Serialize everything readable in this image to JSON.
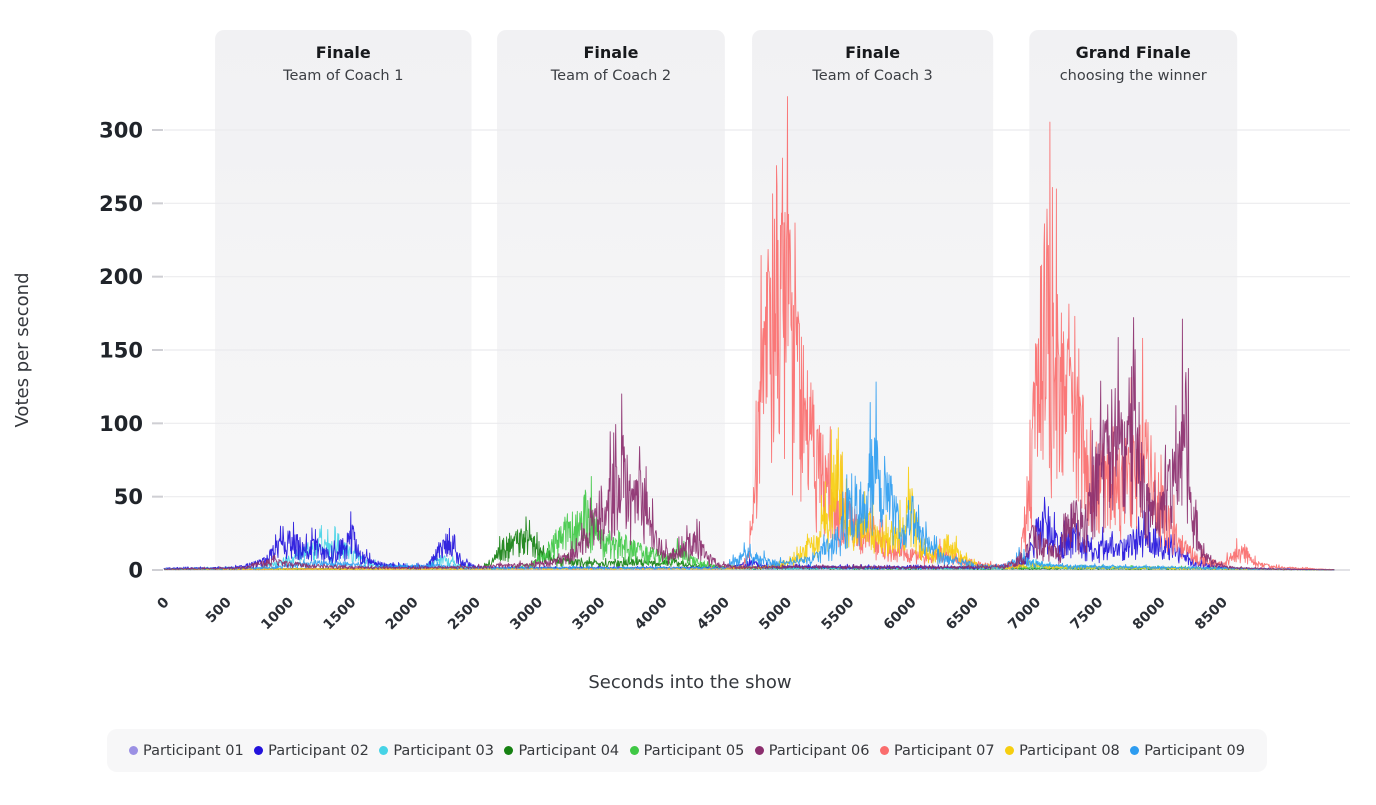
{
  "page": {
    "background": "#ffffff"
  },
  "chart_data": {
    "type": "line",
    "title": "",
    "xlabel": "Seconds into the show",
    "ylabel": "Votes per second",
    "x_ticks": [
      0,
      500,
      1000,
      1500,
      2000,
      2500,
      3000,
      3500,
      4000,
      4500,
      5000,
      5500,
      6000,
      6500,
      7000,
      7500,
      8000,
      8500
    ],
    "y_ticks": [
      0,
      50,
      100,
      150,
      200,
      250,
      300
    ],
    "xlim": [
      0,
      9400
    ],
    "ylim": [
      0,
      320
    ],
    "grid": "horizontal",
    "legend_position": "bottom",
    "series_encoding": "envelope control points [seconds_into_show, votes_per_second]; rendered as dense spiky per-second traces",
    "bands": [
      {
        "title": "Finale",
        "subtitle": "Team of Coach 1",
        "start": 410,
        "end": 2470
      },
      {
        "title": "Finale",
        "subtitle": "Team of Coach 2",
        "start": 2675,
        "end": 4505
      },
      {
        "title": "Finale",
        "subtitle": "Team of Coach 3",
        "start": 4723,
        "end": 6660
      },
      {
        "title": "Grand Finale",
        "subtitle": "choosing the winner",
        "start": 6950,
        "end": 8620
      }
    ],
    "draw_order": [
      0,
      3,
      4,
      2,
      1,
      6,
      7,
      8,
      5
    ],
    "series": [
      {
        "name": "Participant 01",
        "color": "#9b90e4",
        "envelope": [
          [
            0,
            1.2
          ],
          [
            8600,
            1.2
          ],
          [
            8800,
            0.6
          ],
          [
            9400,
            0.2
          ]
        ]
      },
      {
        "name": "Participant 02",
        "color": "#2312dc",
        "envelope": [
          [
            0,
            1.5
          ],
          [
            550,
            2
          ],
          [
            700,
            5
          ],
          [
            820,
            10
          ],
          [
            900,
            20
          ],
          [
            980,
            26
          ],
          [
            1060,
            29
          ],
          [
            1140,
            18
          ],
          [
            1220,
            23
          ],
          [
            1300,
            15
          ],
          [
            1380,
            18
          ],
          [
            1450,
            24
          ],
          [
            1510,
            33
          ],
          [
            1570,
            15
          ],
          [
            1660,
            8
          ],
          [
            1780,
            5
          ],
          [
            1950,
            3
          ],
          [
            2120,
            4
          ],
          [
            2200,
            18
          ],
          [
            2260,
            27
          ],
          [
            2330,
            18
          ],
          [
            2400,
            8
          ],
          [
            2500,
            3
          ],
          [
            2700,
            2
          ],
          [
            4550,
            2
          ],
          [
            4700,
            7
          ],
          [
            4850,
            4
          ],
          [
            5200,
            3
          ],
          [
            6500,
            2.5
          ],
          [
            6850,
            4
          ],
          [
            6950,
            18
          ],
          [
            7030,
            45
          ],
          [
            7120,
            32
          ],
          [
            7220,
            26
          ],
          [
            7320,
            33
          ],
          [
            7400,
            25
          ],
          [
            7500,
            20
          ],
          [
            7600,
            24
          ],
          [
            7700,
            20
          ],
          [
            7800,
            30
          ],
          [
            7900,
            36
          ],
          [
            8000,
            28
          ],
          [
            8100,
            20
          ],
          [
            8200,
            12
          ],
          [
            8300,
            6
          ],
          [
            8450,
            3
          ],
          [
            8600,
            1.5
          ],
          [
            9000,
            0.8
          ],
          [
            9400,
            0.3
          ]
        ]
      },
      {
        "name": "Participant 03",
        "color": "#46d3e6",
        "envelope": [
          [
            0,
            1.3
          ],
          [
            750,
            2
          ],
          [
            900,
            6
          ],
          [
            1000,
            10
          ],
          [
            1100,
            16
          ],
          [
            1180,
            20
          ],
          [
            1260,
            24
          ],
          [
            1340,
            19
          ],
          [
            1400,
            26
          ],
          [
            1470,
            21
          ],
          [
            1560,
            12
          ],
          [
            1660,
            6
          ],
          [
            1800,
            3
          ],
          [
            2100,
            2.5
          ],
          [
            2230,
            11
          ],
          [
            2320,
            7
          ],
          [
            2430,
            3
          ],
          [
            2600,
            1.5
          ],
          [
            6800,
            1.5
          ],
          [
            6930,
            7
          ],
          [
            7050,
            5
          ],
          [
            7250,
            2.5
          ],
          [
            8600,
            1.2
          ],
          [
            9000,
            0.6
          ],
          [
            9400,
            0.2
          ]
        ]
      },
      {
        "name": "Participant 04",
        "color": "#168112",
        "envelope": [
          [
            0,
            0.8
          ],
          [
            2550,
            1.5
          ],
          [
            2650,
            10
          ],
          [
            2720,
            22
          ],
          [
            2800,
            28
          ],
          [
            2880,
            31
          ],
          [
            2960,
            26
          ],
          [
            3040,
            18
          ],
          [
            3140,
            10
          ],
          [
            3260,
            8
          ],
          [
            3420,
            6.5
          ],
          [
            3600,
            6
          ],
          [
            3800,
            8
          ],
          [
            3950,
            6
          ],
          [
            4100,
            8
          ],
          [
            4230,
            5
          ],
          [
            4380,
            3
          ],
          [
            4520,
            1.5
          ],
          [
            8600,
            1
          ],
          [
            9400,
            0.2
          ]
        ]
      },
      {
        "name": "Participant 05",
        "color": "#3fc845",
        "envelope": [
          [
            0,
            0.8
          ],
          [
            2750,
            1.5
          ],
          [
            2950,
            5
          ],
          [
            3050,
            14
          ],
          [
            3150,
            28
          ],
          [
            3250,
            40
          ],
          [
            3330,
            46
          ],
          [
            3400,
            57
          ],
          [
            3460,
            38
          ],
          [
            3540,
            26
          ],
          [
            3640,
            29
          ],
          [
            3740,
            22
          ],
          [
            3840,
            18
          ],
          [
            3940,
            15
          ],
          [
            4040,
            12
          ],
          [
            4140,
            18
          ],
          [
            4240,
            10
          ],
          [
            4340,
            5
          ],
          [
            4480,
            2.5
          ],
          [
            6000,
            2
          ],
          [
            6900,
            2.5
          ],
          [
            7600,
            2.5
          ],
          [
            8400,
            2
          ],
          [
            8600,
            1.5
          ],
          [
            9000,
            0.6
          ],
          [
            9400,
            0.2
          ]
        ]
      },
      {
        "name": "Participant 06",
        "color": "#8b2e6e",
        "envelope": [
          [
            0,
            0.8
          ],
          [
            620,
            2
          ],
          [
            760,
            6
          ],
          [
            880,
            8
          ],
          [
            1020,
            6
          ],
          [
            1180,
            4
          ],
          [
            1450,
            3
          ],
          [
            1900,
            2
          ],
          [
            2550,
            3
          ],
          [
            2750,
            5
          ],
          [
            2950,
            5
          ],
          [
            3150,
            8
          ],
          [
            3300,
            16
          ],
          [
            3420,
            38
          ],
          [
            3520,
            62
          ],
          [
            3620,
            78
          ],
          [
            3700,
            95
          ],
          [
            3760,
            62
          ],
          [
            3840,
            78
          ],
          [
            3910,
            42
          ],
          [
            3990,
            22
          ],
          [
            4090,
            12
          ],
          [
            4200,
            24
          ],
          [
            4280,
            28
          ],
          [
            4360,
            14
          ],
          [
            4460,
            5
          ],
          [
            4600,
            2.5
          ],
          [
            5300,
            3
          ],
          [
            6000,
            2.5
          ],
          [
            6750,
            3
          ],
          [
            6900,
            12
          ],
          [
            6990,
            35
          ],
          [
            7080,
            22
          ],
          [
            7180,
            16
          ],
          [
            7300,
            52
          ],
          [
            7390,
            38
          ],
          [
            7480,
            85
          ],
          [
            7570,
            120
          ],
          [
            7650,
            128
          ],
          [
            7720,
            105
          ],
          [
            7790,
            175
          ],
          [
            7860,
            95
          ],
          [
            7930,
            48
          ],
          [
            8040,
            62
          ],
          [
            8140,
            105
          ],
          [
            8210,
            145
          ],
          [
            8270,
            65
          ],
          [
            8330,
            18
          ],
          [
            8430,
            6
          ],
          [
            8600,
            2
          ],
          [
            9000,
            0.7
          ],
          [
            9400,
            0.2
          ]
        ]
      },
      {
        "name": "Participant 07",
        "color": "#fa6d6d",
        "envelope": [
          [
            0,
            0.8
          ],
          [
            1500,
            1.2
          ],
          [
            4400,
            1.5
          ],
          [
            4650,
            3
          ],
          [
            4700,
            15
          ],
          [
            4740,
            70
          ],
          [
            4790,
            150
          ],
          [
            4840,
            210
          ],
          [
            4890,
            265
          ],
          [
            4950,
            310
          ],
          [
            5000,
            260
          ],
          [
            5040,
            225
          ],
          [
            5090,
            185
          ],
          [
            5150,
            150
          ],
          [
            5230,
            115
          ],
          [
            5320,
            85
          ],
          [
            5420,
            62
          ],
          [
            5520,
            46
          ],
          [
            5620,
            36
          ],
          [
            5720,
            28
          ],
          [
            5830,
            22
          ],
          [
            5980,
            16
          ],
          [
            6120,
            12
          ],
          [
            6280,
            18
          ],
          [
            6400,
            10
          ],
          [
            6540,
            6
          ],
          [
            6680,
            4
          ],
          [
            6860,
            6
          ],
          [
            6940,
            55
          ],
          [
            6990,
            140
          ],
          [
            7040,
            220
          ],
          [
            7090,
            255
          ],
          [
            7140,
            205
          ],
          [
            7200,
            185
          ],
          [
            7270,
            155
          ],
          [
            7340,
            132
          ],
          [
            7410,
            112
          ],
          [
            7490,
            95
          ],
          [
            7590,
            82
          ],
          [
            7690,
            88
          ],
          [
            7790,
            100
          ],
          [
            7860,
            128
          ],
          [
            7930,
            92
          ],
          [
            8010,
            62
          ],
          [
            8090,
            42
          ],
          [
            8190,
            22
          ],
          [
            8290,
            12
          ],
          [
            8400,
            8
          ],
          [
            8500,
            6
          ],
          [
            8620,
            16
          ],
          [
            8680,
            19
          ],
          [
            8740,
            8
          ],
          [
            8900,
            3
          ],
          [
            9150,
            1.5
          ],
          [
            9400,
            0.3
          ]
        ]
      },
      {
        "name": "Participant 08",
        "color": "#f6ce10",
        "envelope": [
          [
            0,
            0.8
          ],
          [
            4550,
            1.2
          ],
          [
            4800,
            2.5
          ],
          [
            5000,
            6
          ],
          [
            5120,
            14
          ],
          [
            5220,
            28
          ],
          [
            5320,
            48
          ],
          [
            5414,
            100
          ],
          [
            5470,
            50
          ],
          [
            5560,
            36
          ],
          [
            5660,
            44
          ],
          [
            5760,
            32
          ],
          [
            5860,
            28
          ],
          [
            5940,
            40
          ],
          [
            5995,
            62
          ],
          [
            6070,
            28
          ],
          [
            6180,
            14
          ],
          [
            6300,
            26
          ],
          [
            6420,
            10
          ],
          [
            6560,
            4
          ],
          [
            6800,
            2
          ],
          [
            6950,
            6
          ],
          [
            7100,
            2.5
          ],
          [
            8600,
            1
          ],
          [
            9000,
            0.5
          ],
          [
            9400,
            0.2
          ]
        ]
      },
      {
        "name": "Participant 09",
        "color": "#2d9cf0",
        "envelope": [
          [
            0,
            0.8
          ],
          [
            850,
            2
          ],
          [
            1050,
            5
          ],
          [
            1250,
            7
          ],
          [
            1450,
            6
          ],
          [
            1650,
            3
          ],
          [
            2200,
            4
          ],
          [
            2400,
            2
          ],
          [
            4500,
            2
          ],
          [
            4680,
            16
          ],
          [
            4760,
            12
          ],
          [
            4880,
            8
          ],
          [
            5020,
            6
          ],
          [
            5160,
            10
          ],
          [
            5270,
            16
          ],
          [
            5380,
            26
          ],
          [
            5470,
            48
          ],
          [
            5540,
            75
          ],
          [
            5620,
            58
          ],
          [
            5695,
            110
          ],
          [
            5760,
            72
          ],
          [
            5800,
            86
          ],
          [
            5870,
            52
          ],
          [
            5940,
            42
          ],
          [
            6000,
            56
          ],
          [
            6070,
            36
          ],
          [
            6160,
            20
          ],
          [
            6270,
            12
          ],
          [
            6400,
            8
          ],
          [
            6550,
            4
          ],
          [
            6720,
            3
          ],
          [
            6880,
            12
          ],
          [
            6960,
            8
          ],
          [
            7100,
            4
          ],
          [
            8600,
            1.5
          ],
          [
            9000,
            0.7
          ],
          [
            9400,
            0.2
          ]
        ]
      }
    ]
  }
}
